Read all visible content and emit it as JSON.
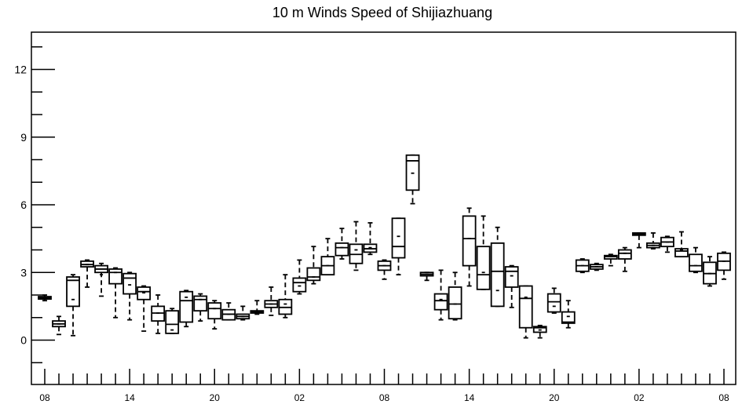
{
  "chart_data": {
    "type": "boxplot",
    "title": "10 m Winds Speed of Shijiazhuang",
    "xlabel": "",
    "ylabel": "",
    "ylim": [
      -2,
      13.5
    ],
    "yticks": [
      0,
      3,
      6,
      9,
      12
    ],
    "ytick_labels": [
      "0",
      "3",
      "6",
      "9",
      "12"
    ],
    "xlim": [
      0,
      49
    ],
    "xticks": [
      1,
      7,
      13,
      19,
      25,
      31,
      37,
      43,
      49
    ],
    "xtick_labels": [
      "08",
      "14",
      "20",
      "02",
      "08",
      "14",
      "20",
      "02",
      "08"
    ],
    "grid": false,
    "boxes": [
      {
        "x": 1,
        "min": 1.75,
        "q1": 1.82,
        "median": 1.87,
        "q3": 1.93,
        "max": 2.0,
        "mean": 1.87
      },
      {
        "x": 2,
        "min": 0.25,
        "q1": 0.6,
        "median": 0.72,
        "q3": 0.85,
        "max": 1.05,
        "mean": 0.72
      },
      {
        "x": 3,
        "min": 0.2,
        "q1": 1.5,
        "median": 2.65,
        "q3": 2.8,
        "max": 2.9,
        "mean": 1.8
      },
      {
        "x": 4,
        "min": 2.35,
        "q1": 3.25,
        "median": 3.35,
        "q3": 3.5,
        "max": 3.55,
        "mean": 3.35
      },
      {
        "x": 5,
        "min": 1.95,
        "q1": 3.0,
        "median": 3.15,
        "q3": 3.3,
        "max": 3.4,
        "mean": 2.9
      },
      {
        "x": 6,
        "min": 1.0,
        "q1": 2.5,
        "median": 3.0,
        "q3": 3.15,
        "max": 3.2,
        "mean": 3.0
      },
      {
        "x": 7,
        "min": 0.9,
        "q1": 2.05,
        "median": 2.75,
        "q3": 2.95,
        "max": 3.0,
        "mean": 2.45
      },
      {
        "x": 8,
        "min": 0.4,
        "q1": 1.8,
        "median": 2.15,
        "q3": 2.35,
        "max": 2.4,
        "mean": 2.1
      },
      {
        "x": 9,
        "min": 0.3,
        "q1": 0.85,
        "median": 1.2,
        "q3": 1.5,
        "max": 2.0,
        "mean": 1.2
      },
      {
        "x": 10,
        "min": 0.3,
        "q1": 0.3,
        "median": 0.7,
        "q3": 1.3,
        "max": 1.4,
        "mean": 0.45
      },
      {
        "x": 11,
        "min": 0.6,
        "q1": 0.8,
        "median": 1.75,
        "q3": 2.15,
        "max": 2.2,
        "mean": 1.9
      },
      {
        "x": 12,
        "min": 0.85,
        "q1": 1.3,
        "median": 1.8,
        "q3": 1.95,
        "max": 2.05,
        "mean": 1.8
      },
      {
        "x": 13,
        "min": 0.5,
        "q1": 0.95,
        "median": 1.4,
        "q3": 1.65,
        "max": 1.75,
        "mean": 1.4
      },
      {
        "x": 14,
        "min": 0.9,
        "q1": 0.9,
        "median": 1.15,
        "q3": 1.35,
        "max": 1.65,
        "mean": 1.15
      },
      {
        "x": 15,
        "min": 0.9,
        "q1": 0.95,
        "median": 1.05,
        "q3": 1.15,
        "max": 1.5,
        "mean": 1.05
      },
      {
        "x": 16,
        "min": 1.15,
        "q1": 1.2,
        "median": 1.25,
        "q3": 1.3,
        "max": 1.75,
        "mean": 1.25
      },
      {
        "x": 17,
        "min": 1.1,
        "q1": 1.45,
        "median": 1.6,
        "q3": 1.75,
        "max": 2.35,
        "mean": 1.6
      },
      {
        "x": 18,
        "min": 1.0,
        "q1": 1.15,
        "median": 1.45,
        "q3": 1.8,
        "max": 2.9,
        "mean": 1.6
      },
      {
        "x": 19,
        "min": 2.05,
        "q1": 2.15,
        "median": 2.55,
        "q3": 2.75,
        "max": 3.55,
        "mean": 2.4
      },
      {
        "x": 20,
        "min": 2.5,
        "q1": 2.65,
        "median": 2.8,
        "q3": 3.2,
        "max": 4.15,
        "mean": 2.8
      },
      {
        "x": 21,
        "min": 2.9,
        "q1": 2.9,
        "median": 3.3,
        "q3": 3.7,
        "max": 4.5,
        "mean": 3.3
      },
      {
        "x": 22,
        "min": 3.6,
        "q1": 3.75,
        "median": 4.1,
        "q3": 4.3,
        "max": 4.95,
        "mean": 4.1
      },
      {
        "x": 23,
        "min": 3.1,
        "q1": 3.4,
        "median": 3.8,
        "q3": 4.25,
        "max": 5.25,
        "mean": 4.0
      },
      {
        "x": 24,
        "min": 3.8,
        "q1": 3.9,
        "median": 4.05,
        "q3": 4.25,
        "max": 5.2,
        "mean": 4.1
      },
      {
        "x": 25,
        "min": 2.7,
        "q1": 3.1,
        "median": 3.3,
        "q3": 3.5,
        "max": 3.55,
        "mean": 3.3
      },
      {
        "x": 26,
        "min": 2.9,
        "q1": 3.65,
        "median": 4.15,
        "q3": 5.4,
        "max": 5.4,
        "mean": 4.6
      },
      {
        "x": 27,
        "min": 6.05,
        "q1": 6.65,
        "median": 7.95,
        "q3": 8.2,
        "max": 8.2,
        "mean": 7.4
      },
      {
        "x": 28,
        "min": 2.65,
        "q1": 2.85,
        "median": 2.92,
        "q3": 3.0,
        "max": 3.0,
        "mean": 2.92
      },
      {
        "x": 29,
        "min": 0.9,
        "q1": 1.35,
        "median": 1.75,
        "q3": 2.05,
        "max": 3.1,
        "mean": 1.8
      },
      {
        "x": 30,
        "min": 0.9,
        "q1": 0.95,
        "median": 1.6,
        "q3": 2.35,
        "max": 3.0,
        "mean": 1.6
      },
      {
        "x": 31,
        "min": 2.4,
        "q1": 3.3,
        "median": 4.5,
        "q3": 5.5,
        "max": 5.85,
        "mean": 4.5
      },
      {
        "x": 32,
        "min": 2.25,
        "q1": 2.25,
        "median": 2.9,
        "q3": 4.15,
        "max": 5.5,
        "mean": 3.0
      },
      {
        "x": 33,
        "min": 1.5,
        "q1": 1.5,
        "median": 3.05,
        "q3": 4.3,
        "max": 5.0,
        "mean": 2.2
      },
      {
        "x": 34,
        "min": 1.45,
        "q1": 2.35,
        "median": 3.05,
        "q3": 3.25,
        "max": 3.3,
        "mean": 2.85
      },
      {
        "x": 35,
        "min": 0.1,
        "q1": 0.55,
        "median": 1.85,
        "q3": 2.4,
        "max": 2.4,
        "mean": 1.9
      },
      {
        "x": 36,
        "min": 0.1,
        "q1": 0.35,
        "median": 0.55,
        "q3": 0.6,
        "max": 0.65,
        "mean": 0.45
      },
      {
        "x": 37,
        "min": 1.2,
        "q1": 1.25,
        "median": 1.7,
        "q3": 2.05,
        "max": 2.3,
        "mean": 1.5
      },
      {
        "x": 38,
        "min": 0.55,
        "q1": 0.75,
        "median": 0.8,
        "q3": 1.25,
        "max": 1.75,
        "mean": 1.05
      },
      {
        "x": 39,
        "min": 3.0,
        "q1": 3.05,
        "median": 3.3,
        "q3": 3.55,
        "max": 3.6,
        "mean": 3.3
      },
      {
        "x": 40,
        "min": 3.1,
        "q1": 3.15,
        "median": 3.25,
        "q3": 3.35,
        "max": 3.4,
        "mean": 3.25
      },
      {
        "x": 41,
        "min": 3.3,
        "q1": 3.6,
        "median": 3.7,
        "q3": 3.75,
        "max": 3.8,
        "mean": 3.7
      },
      {
        "x": 42,
        "min": 3.05,
        "q1": 3.6,
        "median": 3.85,
        "q3": 4.0,
        "max": 4.1,
        "mean": 3.85
      },
      {
        "x": 43,
        "min": 4.1,
        "q1": 4.65,
        "median": 4.7,
        "q3": 4.75,
        "max": 4.75,
        "mean": 4.7
      },
      {
        "x": 44,
        "min": 4.05,
        "q1": 4.1,
        "median": 4.2,
        "q3": 4.3,
        "max": 4.75,
        "mean": 4.2
      },
      {
        "x": 45,
        "min": 3.9,
        "q1": 4.15,
        "median": 4.35,
        "q3": 4.55,
        "max": 4.6,
        "mean": 4.35
      },
      {
        "x": 46,
        "min": 3.7,
        "q1": 3.7,
        "median": 3.95,
        "q3": 4.05,
        "max": 4.8,
        "mean": 4.0
      },
      {
        "x": 47,
        "min": 3.0,
        "q1": 3.05,
        "median": 3.3,
        "q3": 3.8,
        "max": 4.1,
        "mean": 3.3
      },
      {
        "x": 48,
        "min": 2.4,
        "q1": 2.5,
        "median": 2.95,
        "q3": 3.45,
        "max": 3.7,
        "mean": 2.95
      },
      {
        "x": 49,
        "min": 2.7,
        "q1": 3.1,
        "median": 3.5,
        "q3": 3.85,
        "max": 3.9,
        "mean": 3.5
      }
    ]
  }
}
